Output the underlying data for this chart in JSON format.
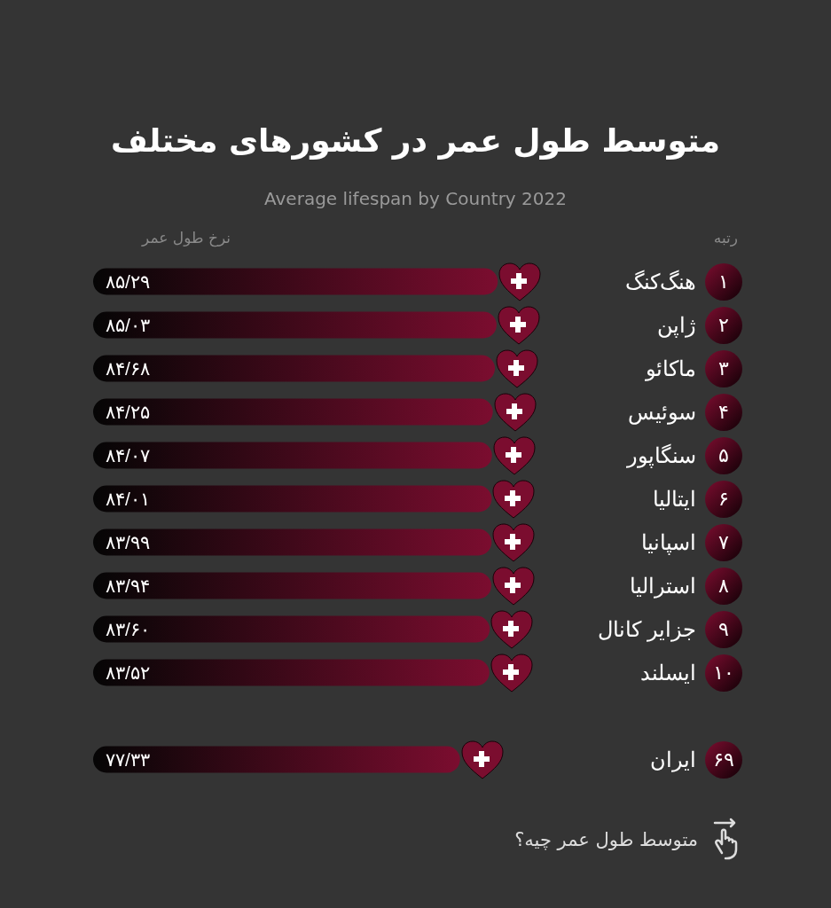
{
  "chart_data": {
    "type": "bar",
    "orientation": "horizontal",
    "title": "متوسط طول عمر در کشورهای مختلف",
    "subtitle": "Average lifespan by Country 2022",
    "categories": [
      "هنگ‌کنگ",
      "ژاپن",
      "ماکائو",
      "سوئیس",
      "سنگاپور",
      "ایتالیا",
      "اسپانیا",
      "استرالیا",
      "جزایر کانال",
      "ایسلند",
      null,
      "ایران"
    ],
    "values": [
      85.29,
      85.03,
      84.68,
      84.25,
      84.07,
      84.01,
      83.99,
      83.94,
      83.6,
      83.52,
      null,
      77.33
    ],
    "value_labels": [
      "۸۵/۲۹",
      "۸۵/۰۳",
      "۸۴/۶۸",
      "۸۴/۲۵",
      "۸۴/۰۷",
      "۸۴/۰۱",
      "۸۳/۹۹",
      "۸۳/۹۴",
      "۸۳/۶۰",
      "۸۳/۵۲",
      null,
      "۷۷/۳۳"
    ],
    "color": "#7b0d2f",
    "annotations": [
      "نرخ طول عمر",
      "رتبه",
      "متوسط طول عمر چیه؟",
      "۱",
      "۲",
      "۳",
      "۴",
      "۵",
      "۶",
      "۷",
      "۸",
      "۹",
      "۱۰",
      "۶۹"
    ]
  }
}
